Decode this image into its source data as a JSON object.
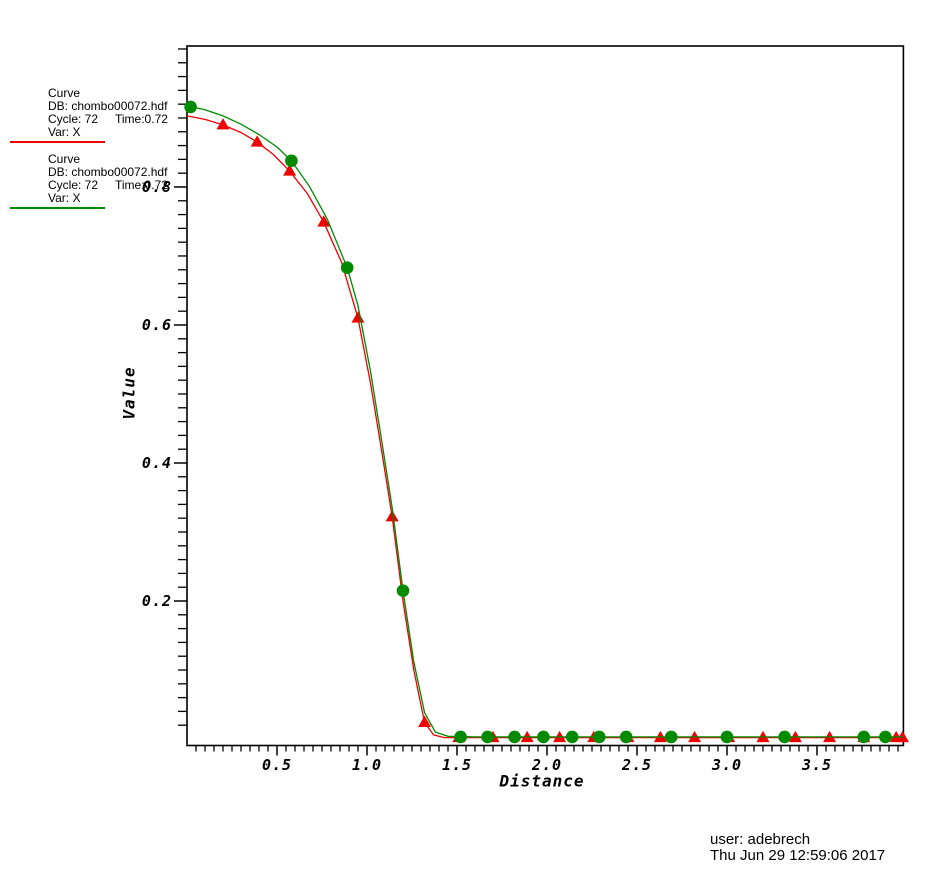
{
  "footer": {
    "user_line": "user: adebrech",
    "date_line": "Thu Jun 29 12:59:06 2017"
  },
  "legend": [
    {
      "title": "Curve",
      "db": "DB: chombo00072.hdf",
      "cycle": "Cycle: 72",
      "time": "Time:0.72",
      "var": "Var: X",
      "color": "#ee0000"
    },
    {
      "title": "Curve",
      "db": "DB: chombo00072.hdf",
      "cycle": "Cycle: 72",
      "time": "Time:0.72",
      "var": "Var: X",
      "color": "#008a00"
    }
  ],
  "chart_data": {
    "type": "line",
    "title": "",
    "xlabel": "Distance",
    "ylabel": "Value",
    "xlim": [
      0,
      3.98
    ],
    "ylim": [
      -0.0094,
      1.0043
    ],
    "grid": false,
    "legend_position": "top-left",
    "x_ticks": [
      {
        "v": 0.5,
        "label": "0.5"
      },
      {
        "v": 1.0,
        "label": "1.0"
      },
      {
        "v": 1.5,
        "label": "1.5"
      },
      {
        "v": 2.0,
        "label": "2.0"
      },
      {
        "v": 2.5,
        "label": "2.5"
      },
      {
        "v": 3.0,
        "label": "3.0"
      },
      {
        "v": 3.5,
        "label": "3.5"
      }
    ],
    "x_minor_step": 0.05,
    "y_ticks": [
      {
        "v": 0.2,
        "label": "0.2"
      },
      {
        "v": 0.4,
        "label": "0.4"
      },
      {
        "v": 0.6,
        "label": "0.6"
      },
      {
        "v": 0.8,
        "label": "0.8"
      }
    ],
    "y_minor_step": 0.02,
    "series": [
      {
        "id": "red",
        "name": "Var: X (chombo00072.hdf, cycle 72, time 0.72)",
        "color": "#ee0000",
        "marker": "triangle",
        "line": [
          [
            0.0,
            0.903
          ],
          [
            0.1,
            0.898
          ],
          [
            0.2,
            0.89
          ],
          [
            0.3,
            0.879
          ],
          [
            0.39,
            0.865
          ],
          [
            0.48,
            0.847
          ],
          [
            0.57,
            0.823
          ],
          [
            0.67,
            0.79
          ],
          [
            0.76,
            0.749
          ],
          [
            0.86,
            0.69
          ],
          [
            0.95,
            0.61
          ],
          [
            1.02,
            0.515
          ],
          [
            1.08,
            0.42
          ],
          [
            1.14,
            0.322
          ],
          [
            1.2,
            0.2
          ],
          [
            1.26,
            0.1
          ],
          [
            1.32,
            0.024
          ],
          [
            1.37,
            0.006
          ],
          [
            1.43,
            0.002
          ],
          [
            1.6,
            0.002
          ],
          [
            2.0,
            0.002
          ],
          [
            3.0,
            0.002
          ],
          [
            3.98,
            0.002
          ]
        ],
        "marker_points": [
          [
            0.2,
            0.89
          ],
          [
            0.39,
            0.865
          ],
          [
            0.57,
            0.823
          ],
          [
            0.76,
            0.749
          ],
          [
            0.95,
            0.61
          ],
          [
            1.14,
            0.322
          ],
          [
            1.32,
            0.024
          ],
          [
            1.51,
            0.002
          ],
          [
            1.7,
            0.002
          ],
          [
            1.89,
            0.002
          ],
          [
            2.07,
            0.002
          ],
          [
            2.26,
            0.002
          ],
          [
            2.45,
            0.002
          ],
          [
            2.63,
            0.002
          ],
          [
            2.82,
            0.002
          ],
          [
            3.01,
            0.002
          ],
          [
            3.2,
            0.002
          ],
          [
            3.38,
            0.002
          ],
          [
            3.57,
            0.002
          ],
          [
            3.76,
            0.002
          ],
          [
            3.94,
            0.002
          ],
          [
            3.975,
            0.002
          ]
        ]
      },
      {
        "id": "green",
        "name": "Var: X (chombo00072.hdf, cycle 72, time 0.72)",
        "color": "#008a00",
        "marker": "circle",
        "line": [
          [
            0.0,
            0.918
          ],
          [
            0.1,
            0.912
          ],
          [
            0.2,
            0.903
          ],
          [
            0.3,
            0.891
          ],
          [
            0.4,
            0.876
          ],
          [
            0.5,
            0.858
          ],
          [
            0.58,
            0.838
          ],
          [
            0.68,
            0.801
          ],
          [
            0.78,
            0.753
          ],
          [
            0.89,
            0.683
          ],
          [
            0.95,
            0.628
          ],
          [
            1.02,
            0.532
          ],
          [
            1.08,
            0.435
          ],
          [
            1.14,
            0.335
          ],
          [
            1.2,
            0.215
          ],
          [
            1.26,
            0.112
          ],
          [
            1.32,
            0.038
          ],
          [
            1.38,
            0.01
          ],
          [
            1.45,
            0.004
          ],
          [
            1.6,
            0.003
          ],
          [
            2.0,
            0.003
          ],
          [
            3.0,
            0.003
          ],
          [
            3.98,
            0.003
          ]
        ],
        "marker_points": [
          [
            0.02,
            0.916
          ],
          [
            0.58,
            0.838
          ],
          [
            0.89,
            0.683
          ],
          [
            1.2,
            0.215
          ],
          [
            1.52,
            0.003
          ],
          [
            1.67,
            0.003
          ],
          [
            1.82,
            0.003
          ],
          [
            1.98,
            0.003
          ],
          [
            2.14,
            0.003
          ],
          [
            2.29,
            0.003
          ],
          [
            2.44,
            0.003
          ],
          [
            2.69,
            0.003
          ],
          [
            3.0,
            0.003
          ],
          [
            3.32,
            0.003
          ],
          [
            3.76,
            0.003
          ],
          [
            3.88,
            0.003
          ]
        ]
      }
    ]
  }
}
